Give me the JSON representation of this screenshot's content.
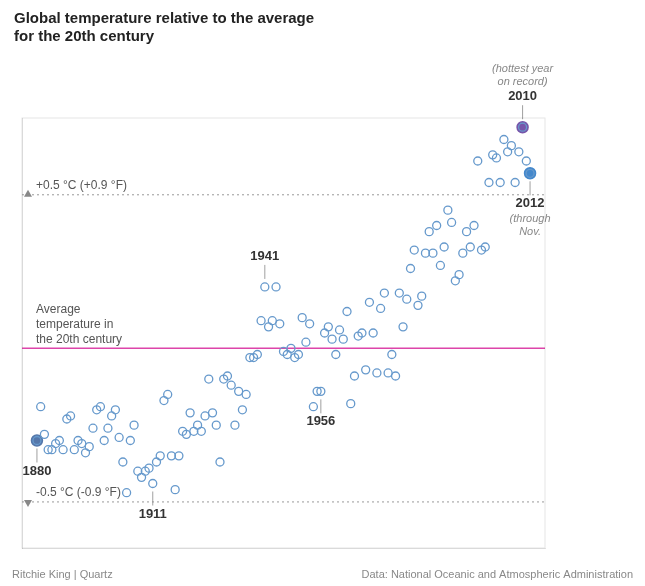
{
  "chart_data": {
    "type": "scatter",
    "title": [
      "Global temperature relative to the average",
      "for the 20th century"
    ],
    "footer": [
      "Ritchie King | Quartz",
      "Data: National Oceanic and Atmospheric Administration"
    ],
    "x": [
      1880,
      1881,
      1882,
      1883,
      1884,
      1885,
      1886,
      1887,
      1888,
      1889,
      1890,
      1891,
      1892,
      1893,
      1894,
      1895,
      1896,
      1897,
      1898,
      1899,
      1900,
      1901,
      1902,
      1903,
      1904,
      1905,
      1906,
      1907,
      1908,
      1909,
      1910,
      1911,
      1912,
      1913,
      1914,
      1915,
      1916,
      1917,
      1918,
      1919,
      1920,
      1921,
      1922,
      1923,
      1924,
      1925,
      1926,
      1927,
      1928,
      1929,
      1930,
      1931,
      1932,
      1933,
      1934,
      1935,
      1936,
      1937,
      1938,
      1939,
      1940,
      1941,
      1942,
      1943,
      1944,
      1945,
      1946,
      1947,
      1948,
      1949,
      1950,
      1951,
      1952,
      1953,
      1954,
      1955,
      1956,
      1957,
      1958,
      1959,
      1960,
      1961,
      1962,
      1963,
      1964,
      1965,
      1966,
      1967,
      1968,
      1969,
      1970,
      1971,
      1972,
      1973,
      1974,
      1975,
      1976,
      1977,
      1978,
      1979,
      1980,
      1981,
      1982,
      1983,
      1984,
      1985,
      1986,
      1987,
      1988,
      1989,
      1990,
      1991,
      1992,
      1993,
      1994,
      1995,
      1996,
      1997,
      1998,
      1999,
      2000,
      2001,
      2002,
      2003,
      2004,
      2005,
      2006,
      2007,
      2008,
      2009,
      2010,
      2011,
      2012
    ],
    "values": [
      -0.3,
      -0.19,
      -0.28,
      -0.33,
      -0.33,
      -0.31,
      -0.3,
      -0.33,
      -0.23,
      -0.22,
      -0.33,
      -0.3,
      -0.31,
      -0.34,
      -0.32,
      -0.26,
      -0.2,
      -0.19,
      -0.3,
      -0.26,
      -0.22,
      -0.2,
      -0.29,
      -0.37,
      -0.47,
      -0.3,
      -0.25,
      -0.4,
      -0.42,
      -0.4,
      -0.39,
      -0.44,
      -0.37,
      -0.35,
      -0.17,
      -0.15,
      -0.35,
      -0.46,
      -0.35,
      -0.27,
      -0.28,
      -0.21,
      -0.27,
      -0.25,
      -0.27,
      -0.22,
      -0.1,
      -0.21,
      -0.25,
      -0.37,
      -0.1,
      -0.09,
      -0.12,
      -0.25,
      -0.14,
      -0.2,
      -0.15,
      -0.03,
      -0.03,
      -0.02,
      0.09,
      0.2,
      0.07,
      0.09,
      0.2,
      0.08,
      -0.01,
      -0.02,
      0.0,
      -0.03,
      -0.02,
      0.1,
      0.02,
      0.08,
      -0.19,
      -0.14,
      -0.14,
      0.05,
      0.07,
      0.03,
      -0.02,
      0.06,
      0.03,
      0.12,
      -0.18,
      -0.09,
      0.04,
      0.05,
      -0.07,
      0.15,
      0.05,
      -0.08,
      0.13,
      0.18,
      -0.08,
      -0.02,
      -0.09,
      0.18,
      0.07,
      0.16,
      0.26,
      0.32,
      0.14,
      0.17,
      0.31,
      0.38,
      0.31,
      0.4,
      0.27,
      0.33,
      0.45,
      0.41,
      0.22,
      0.24,
      0.31,
      0.38,
      0.33,
      0.4,
      0.61,
      0.32,
      0.33,
      0.54,
      0.63,
      0.62,
      0.54,
      0.68,
      0.64,
      0.66,
      0.54,
      0.64,
      0.72,
      0.61,
      0.57
    ],
    "color": "#6699cc",
    "marker": "open_circle",
    "highlights": [
      {
        "x": 1880,
        "color": "#5577aa"
      },
      {
        "x": 2010,
        "color": "#7755aa"
      },
      {
        "x": 2012,
        "color": "#4488cc"
      }
    ],
    "reference_lines": [
      {
        "y": 0.0,
        "label": [
          "Average",
          "temperature in",
          "the 20th century"
        ],
        "color": "#dd44aa",
        "line_style": "solid"
      },
      {
        "y": 0.5,
        "label": "+0.5 °C (+0.9 °F)",
        "color": "#999999",
        "line_style": "dotted"
      },
      {
        "y": -0.5,
        "label": "-0.5 °C (-0.9 °F)",
        "color": "#999999",
        "line_style": "dotted"
      }
    ],
    "annotations": [
      {
        "x": 1880,
        "text": "1880"
      },
      {
        "x": 1911,
        "text": "1911"
      },
      {
        "x": 1941,
        "text": "1941"
      },
      {
        "x": 1956,
        "text": "1956"
      },
      {
        "x": 2010,
        "text": "2010",
        "note": [
          "(hottest year",
          "on record)"
        ]
      },
      {
        "x": 2012,
        "text": "2012",
        "note": [
          "(through",
          "Nov."
        ]
      }
    ],
    "xlim": [
      1876,
      2016
    ],
    "ylim": [
      -0.65,
      0.75
    ],
    "tick_labels": false,
    "grid": false
  }
}
